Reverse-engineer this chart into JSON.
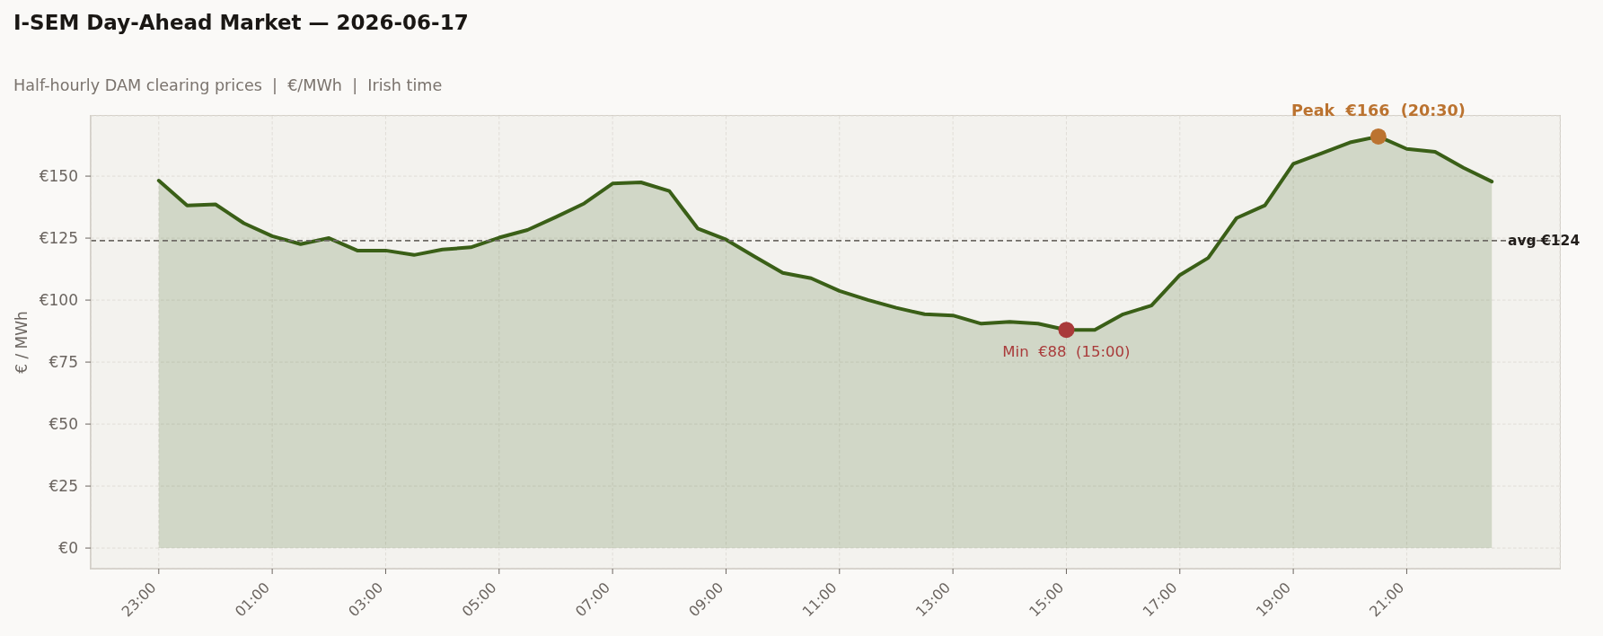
{
  "chart_data": {
    "type": "area",
    "title": "I-SEM Day-Ahead Market — 2026-06-17",
    "subtitle": "Half-hourly DAM clearing prices  |  €/MWh  |  Irish time",
    "ylabel": "€ / MWh",
    "x": [
      "2026-06-16T23:00",
      "2026-06-16T23:30",
      "2026-06-17T00:00",
      "2026-06-17T00:30",
      "2026-06-17T01:00",
      "2026-06-17T01:30",
      "2026-06-17T02:00",
      "2026-06-17T02:30",
      "2026-06-17T03:00",
      "2026-06-17T03:30",
      "2026-06-17T04:00",
      "2026-06-17T04:30",
      "2026-06-17T05:00",
      "2026-06-17T05:30",
      "2026-06-17T06:00",
      "2026-06-17T06:30",
      "2026-06-17T07:00",
      "2026-06-17T07:30",
      "2026-06-17T08:00",
      "2026-06-17T08:30",
      "2026-06-17T09:00",
      "2026-06-17T09:30",
      "2026-06-17T10:00",
      "2026-06-17T10:30",
      "2026-06-17T11:00",
      "2026-06-17T11:30",
      "2026-06-17T12:00",
      "2026-06-17T12:30",
      "2026-06-17T13:00",
      "2026-06-17T13:30",
      "2026-06-17T14:00",
      "2026-06-17T14:30",
      "2026-06-17T15:00",
      "2026-06-17T15:30",
      "2026-06-17T16:00",
      "2026-06-17T16:30",
      "2026-06-17T17:00",
      "2026-06-17T17:30",
      "2026-06-17T18:00",
      "2026-06-17T18:30",
      "2026-06-17T19:00",
      "2026-06-17T19:30",
      "2026-06-17T20:00",
      "2026-06-17T20:30",
      "2026-06-17T21:00",
      "2026-06-17T21:30",
      "2026-06-17T22:00",
      "2026-06-17T22:30"
    ],
    "series": [
      {
        "color": "#3a5f17",
        "values": [
          148.2,
          138.2,
          138.6,
          131.0,
          125.8,
          122.6,
          125.0,
          120.0,
          120.0,
          118.2,
          120.4,
          121.3,
          125.2,
          128.3,
          133.5,
          139.0,
          147.0,
          147.5,
          144.0,
          128.9,
          124.4,
          117.6,
          111.0,
          108.8,
          103.7,
          100.1,
          96.9,
          94.3,
          93.8,
          90.5,
          91.2,
          90.5,
          88,
          88.0,
          94.3,
          97.8,
          110.1,
          117.0,
          133.1,
          138.2,
          155.0,
          159.2,
          163.6,
          166,
          161.0,
          159.8,
          153.4,
          147.8
        ]
      },
      {
        "type": "scatter",
        "color": "#bb7330",
        "x": [
          "2026-06-17T20:30"
        ],
        "values": [
          166
        ]
      },
      {
        "type": "scatter",
        "color": "#a93a3a",
        "x": [
          "2026-06-17T15:00"
        ],
        "values": [
          88
        ]
      }
    ],
    "xlim": [
      "2026-06-16T21:48",
      "2026-06-17T23:42"
    ],
    "xticks": [
      {
        "value": "2026-06-16T23:00",
        "label": "23:00"
      },
      {
        "value": "2026-06-17T01:00",
        "label": "01:00"
      },
      {
        "value": "2026-06-17T03:00",
        "label": "03:00"
      },
      {
        "value": "2026-06-17T05:00",
        "label": "05:00"
      },
      {
        "value": "2026-06-17T07:00",
        "label": "07:00"
      },
      {
        "value": "2026-06-17T09:00",
        "label": "09:00"
      },
      {
        "value": "2026-06-17T11:00",
        "label": "11:00"
      },
      {
        "value": "2026-06-17T13:00",
        "label": "13:00"
      },
      {
        "value": "2026-06-17T15:00",
        "label": "15:00"
      },
      {
        "value": "2026-06-17T17:00",
        "label": "17:00"
      },
      {
        "value": "2026-06-17T19:00",
        "label": "19:00"
      },
      {
        "value": "2026-06-17T21:00",
        "label": "21:00"
      }
    ],
    "ylim": [
      -8.3,
      174.3
    ],
    "yticks": [
      {
        "value": 0,
        "label": "€0"
      },
      {
        "value": 25,
        "label": "€25"
      },
      {
        "value": 50,
        "label": "€50"
      },
      {
        "value": 75,
        "label": "€75"
      },
      {
        "value": 100,
        "label": "€100"
      },
      {
        "value": 125,
        "label": "€125"
      },
      {
        "value": 150,
        "label": "€150"
      }
    ],
    "grid": true,
    "ref_lines": [
      {
        "axis": "y",
        "value": 124,
        "label": "avg €124",
        "color": "#6f6b66",
        "line_style": "dashed"
      }
    ],
    "annotations": [
      {
        "text": "Peak  €166  (20:30)",
        "x": "2026-06-17T20:30",
        "y": 166
      },
      {
        "text": "Min  €88  (15:00)",
        "x": "2026-06-17T15:00",
        "y": 88
      }
    ]
  }
}
